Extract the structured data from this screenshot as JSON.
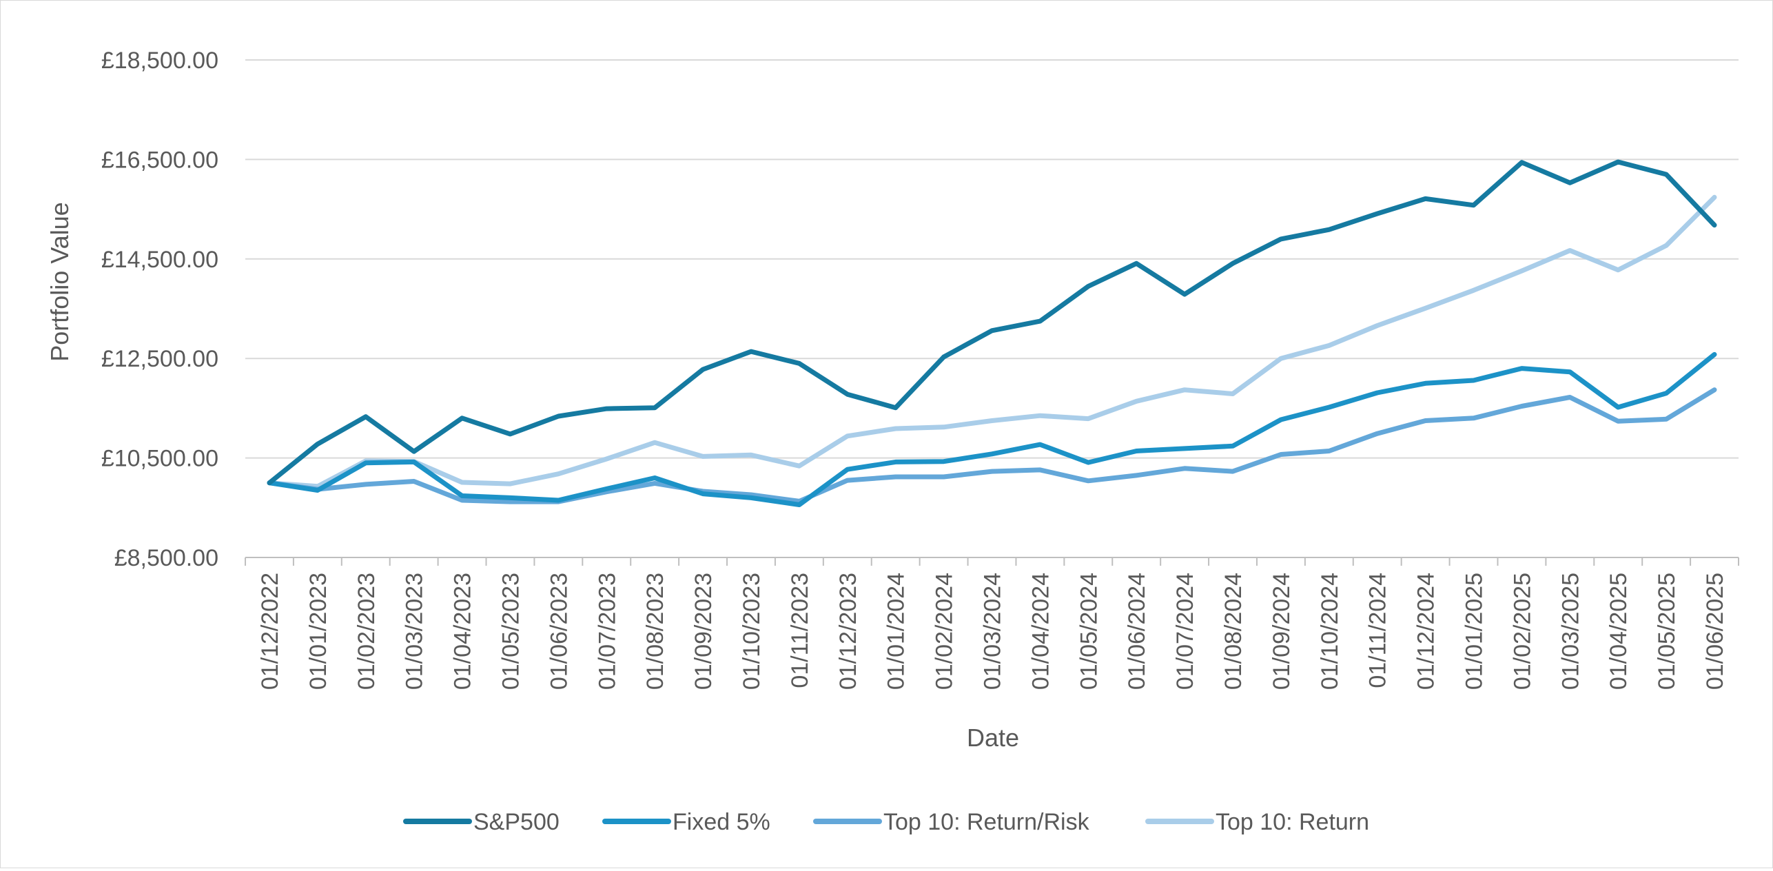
{
  "chart_data": {
    "type": "line",
    "xlabel": "Date",
    "ylabel": "Portfolio Value",
    "ylim": [
      8500,
      18500
    ],
    "y_ticks": [
      8500,
      10500,
      12500,
      14500,
      16500,
      18500
    ],
    "y_tick_labels": [
      "£8,500.00",
      "£10,500.00",
      "£12,500.00",
      "£14,500.00",
      "£16,500.00",
      "£18,500.00"
    ],
    "grid": "horizontal",
    "legend_position": "bottom",
    "categories": [
      "01/12/2022",
      "01/01/2023",
      "01/02/2023",
      "01/03/2023",
      "01/04/2023",
      "01/05/2023",
      "01/06/2023",
      "01/07/2023",
      "01/08/2023",
      "01/09/2023",
      "01/10/2023",
      "01/11/2023",
      "01/12/2023",
      "01/01/2024",
      "01/02/2024",
      "01/03/2024",
      "01/04/2024",
      "01/05/2024",
      "01/06/2024",
      "01/07/2024",
      "01/08/2024",
      "01/09/2024",
      "01/10/2024",
      "01/11/2024",
      "01/12/2024",
      "01/01/2025",
      "01/02/2025",
      "01/03/2025",
      "01/04/2025",
      "01/05/2025",
      "01/06/2025"
    ],
    "series": [
      {
        "name": "S&P500",
        "color": "#157aa1",
        "values": [
          10000,
          10780,
          11330,
          10630,
          11300,
          10980,
          11340,
          11490,
          11510,
          12280,
          12640,
          12400,
          11780,
          11510,
          12530,
          13060,
          13250,
          13950,
          14410,
          13790,
          14410,
          14900,
          15090,
          15410,
          15710,
          15580,
          16440,
          16030,
          16450,
          16200,
          15180
        ]
      },
      {
        "name": "Fixed 5%",
        "color": "#1c92c7",
        "values": [
          10000,
          9850,
          10400,
          10420,
          9740,
          9700,
          9650,
          9880,
          10100,
          9780,
          9700,
          9560,
          10270,
          10420,
          10430,
          10580,
          10770,
          10410,
          10640,
          10690,
          10740,
          11270,
          11520,
          11810,
          12000,
          12060,
          12300,
          12230,
          11520,
          11800,
          12580
        ]
      },
      {
        "name": "Top 10: Return/Risk",
        "color": "#63a7d9",
        "values": [
          10000,
          9870,
          9970,
          10030,
          9650,
          9620,
          9620,
          9820,
          9990,
          9830,
          9760,
          9630,
          10050,
          10120,
          10120,
          10230,
          10260,
          10040,
          10150,
          10290,
          10230,
          10570,
          10640,
          10990,
          11250,
          11300,
          11540,
          11720,
          11240,
          11280,
          11870
        ]
      },
      {
        "name": "Top 10: Return",
        "color": "#a9cde9",
        "values": [
          10000,
          9930,
          10440,
          10430,
          10010,
          9980,
          10180,
          10480,
          10810,
          10530,
          10560,
          10340,
          10940,
          11090,
          11120,
          11250,
          11350,
          11290,
          11640,
          11870,
          11790,
          12500,
          12760,
          13160,
          13510,
          13870,
          14260,
          14670,
          14280,
          14770,
          15740
        ]
      }
    ]
  }
}
